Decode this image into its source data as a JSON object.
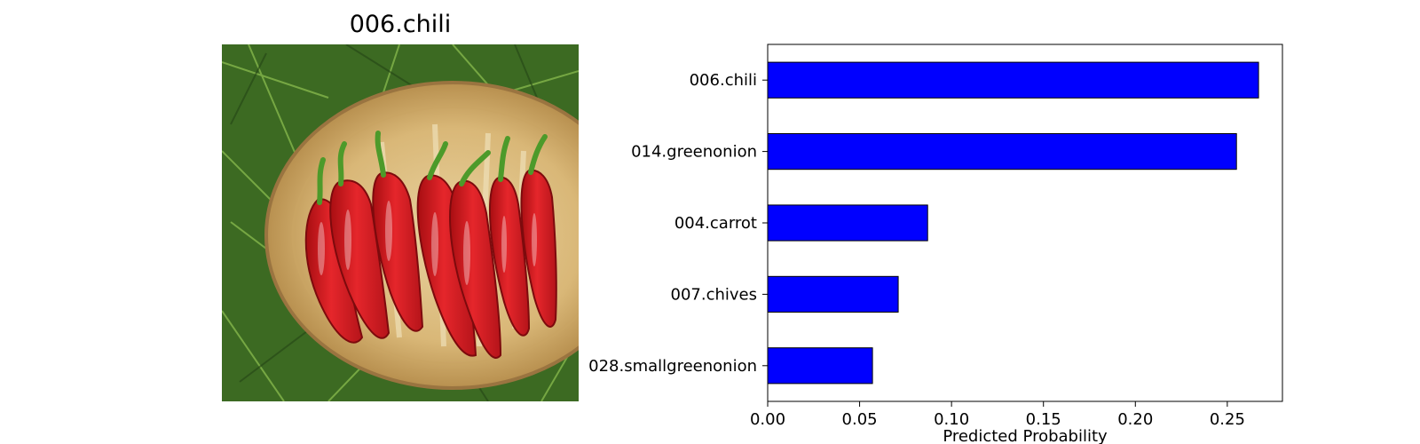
{
  "image_panel": {
    "title": "006.chili",
    "photo_icon": "red-chili-peppers-in-basket-photo"
  },
  "chart_data": {
    "type": "bar",
    "orientation": "horizontal",
    "categories": [
      "006.chili",
      "014.greenonion",
      "004.carrot",
      "007.chives",
      "028.smallgreenonion"
    ],
    "values": [
      0.267,
      0.255,
      0.087,
      0.071,
      0.057
    ],
    "xlabel": "Predicted Probability",
    "ylabel": "",
    "xlim": [
      0,
      0.28
    ],
    "xticks": [
      0,
      0.05,
      0.1,
      0.15,
      0.2,
      0.25
    ],
    "xtick_labels": [
      "0.00",
      "0.05",
      "0.10",
      "0.15",
      "0.20",
      "0.25"
    ],
    "grid": false,
    "bar_color": "#0000ff",
    "edge_color": "#000000"
  }
}
